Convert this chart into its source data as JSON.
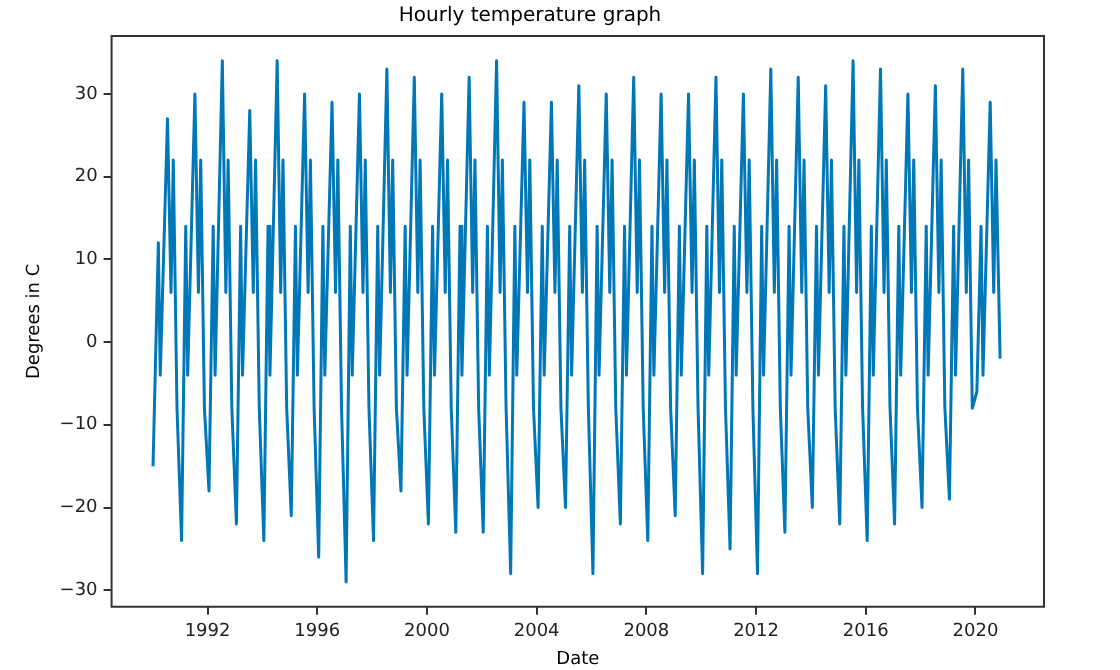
{
  "chart_data": {
    "type": "line",
    "title": "Hourly temperature graph",
    "xlabel": "Date",
    "ylabel": "Degrees in C",
    "xlim": [
      "1988-07",
      "2022-07"
    ],
    "xticks": [
      "1992",
      "1996",
      "2000",
      "2004",
      "2008",
      "2012",
      "2016",
      "2020"
    ],
    "ylim": [
      -32,
      37
    ],
    "yticks": [
      -30,
      -20,
      -10,
      0,
      10,
      20,
      30
    ],
    "grid": false,
    "legend": false,
    "marker": "none",
    "line_style": "solid",
    "series": [
      {
        "color": "#0077b6",
        "x": [
          "1990-01-05",
          "1990-03-15",
          "1990-04-10",
          "1990-07-15",
          "1990-09-01",
          "1990-10-01",
          "1990-11-20",
          "1991-01-20",
          "1991-03-15",
          "1991-04-10",
          "1991-07-15",
          "1991-09-01",
          "1991-10-01",
          "1991-11-20",
          "1992-01-20",
          "1992-03-15",
          "1992-04-10",
          "1992-07-15",
          "1992-09-01",
          "1992-10-01",
          "1992-11-20",
          "1993-01-20",
          "1993-03-15",
          "1993-04-10",
          "1993-07-15",
          "1993-09-01",
          "1993-10-01",
          "1993-11-20",
          "1994-01-20",
          "1994-03-15",
          "1994-04-10",
          "1994-07-15",
          "1994-09-01",
          "1994-10-01",
          "1994-11-20",
          "1995-01-20",
          "1995-03-15",
          "1995-04-10",
          "1995-07-15",
          "1995-09-01",
          "1995-10-01",
          "1995-11-20",
          "1996-01-20",
          "1996-03-15",
          "1996-04-10",
          "1996-07-15",
          "1996-09-01",
          "1996-10-01",
          "1996-11-20",
          "1997-01-20",
          "1997-03-15",
          "1997-04-10",
          "1997-07-15",
          "1997-09-01",
          "1997-10-01",
          "1997-11-20",
          "1998-01-20",
          "1998-03-15",
          "1998-04-10",
          "1998-07-15",
          "1998-09-01",
          "1998-10-01",
          "1998-11-20",
          "1999-01-20",
          "1999-03-15",
          "1999-04-10",
          "1999-07-15",
          "1999-09-01",
          "1999-10-01",
          "1999-11-20",
          "2000-01-20",
          "2000-03-15",
          "2000-04-10",
          "2000-07-15",
          "2000-09-01",
          "2000-10-01",
          "2000-11-20",
          "2001-01-20",
          "2001-03-15",
          "2001-04-10",
          "2001-07-15",
          "2001-09-01",
          "2001-10-01",
          "2001-11-20",
          "2002-01-20",
          "2002-03-15",
          "2002-04-10",
          "2002-07-15",
          "2002-09-01",
          "2002-10-01",
          "2002-11-20",
          "2003-01-20",
          "2003-03-15",
          "2003-04-10",
          "2003-07-15",
          "2003-09-01",
          "2003-10-01",
          "2003-11-20",
          "2004-01-20",
          "2004-03-15",
          "2004-04-10",
          "2004-07-15",
          "2004-09-01",
          "2004-10-01",
          "2004-11-20",
          "2005-01-20",
          "2005-03-15",
          "2005-04-10",
          "2005-07-15",
          "2005-09-01",
          "2005-10-01",
          "2005-11-20",
          "2006-01-20",
          "2006-03-15",
          "2006-04-10",
          "2006-07-15",
          "2006-09-01",
          "2006-10-01",
          "2006-11-20",
          "2007-01-20",
          "2007-03-15",
          "2007-04-10",
          "2007-07-15",
          "2007-09-01",
          "2007-10-01",
          "2007-11-20",
          "2008-01-20",
          "2008-03-15",
          "2008-04-10",
          "2008-07-15",
          "2008-09-01",
          "2008-10-01",
          "2008-11-20",
          "2009-01-20",
          "2009-03-15",
          "2009-04-10",
          "2009-07-15",
          "2009-09-01",
          "2009-10-01",
          "2009-11-20",
          "2010-01-20",
          "2010-03-15",
          "2010-04-10",
          "2010-07-15",
          "2010-09-01",
          "2010-10-01",
          "2010-11-20",
          "2011-01-20",
          "2011-03-15",
          "2011-04-10",
          "2011-07-15",
          "2011-09-01",
          "2011-10-01",
          "2011-11-20",
          "2012-01-20",
          "2012-03-15",
          "2012-04-10",
          "2012-07-15",
          "2012-09-01",
          "2012-10-01",
          "2012-11-20",
          "2013-01-20",
          "2013-03-15",
          "2013-04-10",
          "2013-07-15",
          "2013-09-01",
          "2013-10-01",
          "2013-11-20",
          "2014-01-20",
          "2014-03-15",
          "2014-04-10",
          "2014-07-15",
          "2014-09-01",
          "2014-10-01",
          "2014-11-20",
          "2015-01-20",
          "2015-03-15",
          "2015-04-10",
          "2015-07-15",
          "2015-09-01",
          "2015-10-01",
          "2015-11-20",
          "2016-01-20",
          "2016-03-15",
          "2016-04-10",
          "2016-07-15",
          "2016-09-01",
          "2016-10-01",
          "2016-11-20",
          "2017-01-20",
          "2017-03-15",
          "2017-04-10",
          "2017-07-15",
          "2017-09-01",
          "2017-10-01",
          "2017-11-20",
          "2018-01-20",
          "2018-03-15",
          "2018-04-10",
          "2018-07-15",
          "2018-09-01",
          "2018-10-01",
          "2018-11-20",
          "2019-01-20",
          "2019-03-15",
          "2019-04-10",
          "2019-07-15",
          "2019-09-01",
          "2019-10-01",
          "2019-11-20",
          "2020-01-20",
          "2020-03-15",
          "2020-04-10",
          "2020-07-15",
          "2020-09-01",
          "2020-10-01",
          "2020-11-25"
        ],
        "values": [
          -15,
          12,
          -4,
          27,
          6,
          22,
          -8,
          -24,
          14,
          -4,
          30,
          6,
          22,
          -8,
          -18,
          14,
          -4,
          34,
          6,
          22,
          -8,
          -22,
          14,
          -4,
          28,
          6,
          22,
          -8,
          -24,
          14,
          -4,
          34,
          6,
          22,
          -8,
          -21,
          14,
          -4,
          30,
          6,
          22,
          -8,
          -26,
          14,
          -4,
          29,
          6,
          22,
          -8,
          -29,
          14,
          -4,
          30,
          6,
          22,
          -8,
          -24,
          14,
          -4,
          33,
          6,
          22,
          -8,
          -18,
          14,
          -4,
          32,
          6,
          22,
          -8,
          -22,
          14,
          -4,
          30,
          6,
          22,
          -8,
          -23,
          14,
          -4,
          32,
          6,
          22,
          -8,
          -23,
          14,
          -4,
          34,
          6,
          22,
          -8,
          -28,
          14,
          -4,
          29,
          6,
          22,
          -8,
          -20,
          14,
          -4,
          29,
          6,
          22,
          -8,
          -20,
          14,
          -4,
          31,
          6,
          22,
          -8,
          -28,
          14,
          -4,
          30,
          6,
          22,
          -8,
          -22,
          14,
          -4,
          32,
          6,
          22,
          -8,
          -24,
          14,
          -4,
          30,
          6,
          22,
          -8,
          -21,
          14,
          -4,
          30,
          6,
          22,
          -8,
          -28,
          14,
          -4,
          32,
          6,
          22,
          -8,
          -25,
          14,
          -4,
          30,
          6,
          22,
          -8,
          -28,
          14,
          -4,
          33,
          6,
          22,
          -8,
          -23,
          14,
          -4,
          32,
          6,
          22,
          -8,
          -20,
          14,
          -4,
          31,
          6,
          22,
          -8,
          -22,
          14,
          -4,
          34,
          6,
          22,
          -8,
          -24,
          14,
          -4,
          33,
          6,
          22,
          -8,
          -22,
          14,
          -4,
          30,
          6,
          22,
          -8,
          -20,
          14,
          -4,
          31,
          6,
          22,
          -8,
          -19,
          14,
          -4,
          33,
          6,
          22,
          -8,
          -6,
          14,
          -4,
          29,
          6,
          22,
          -2
        ]
      }
    ]
  }
}
